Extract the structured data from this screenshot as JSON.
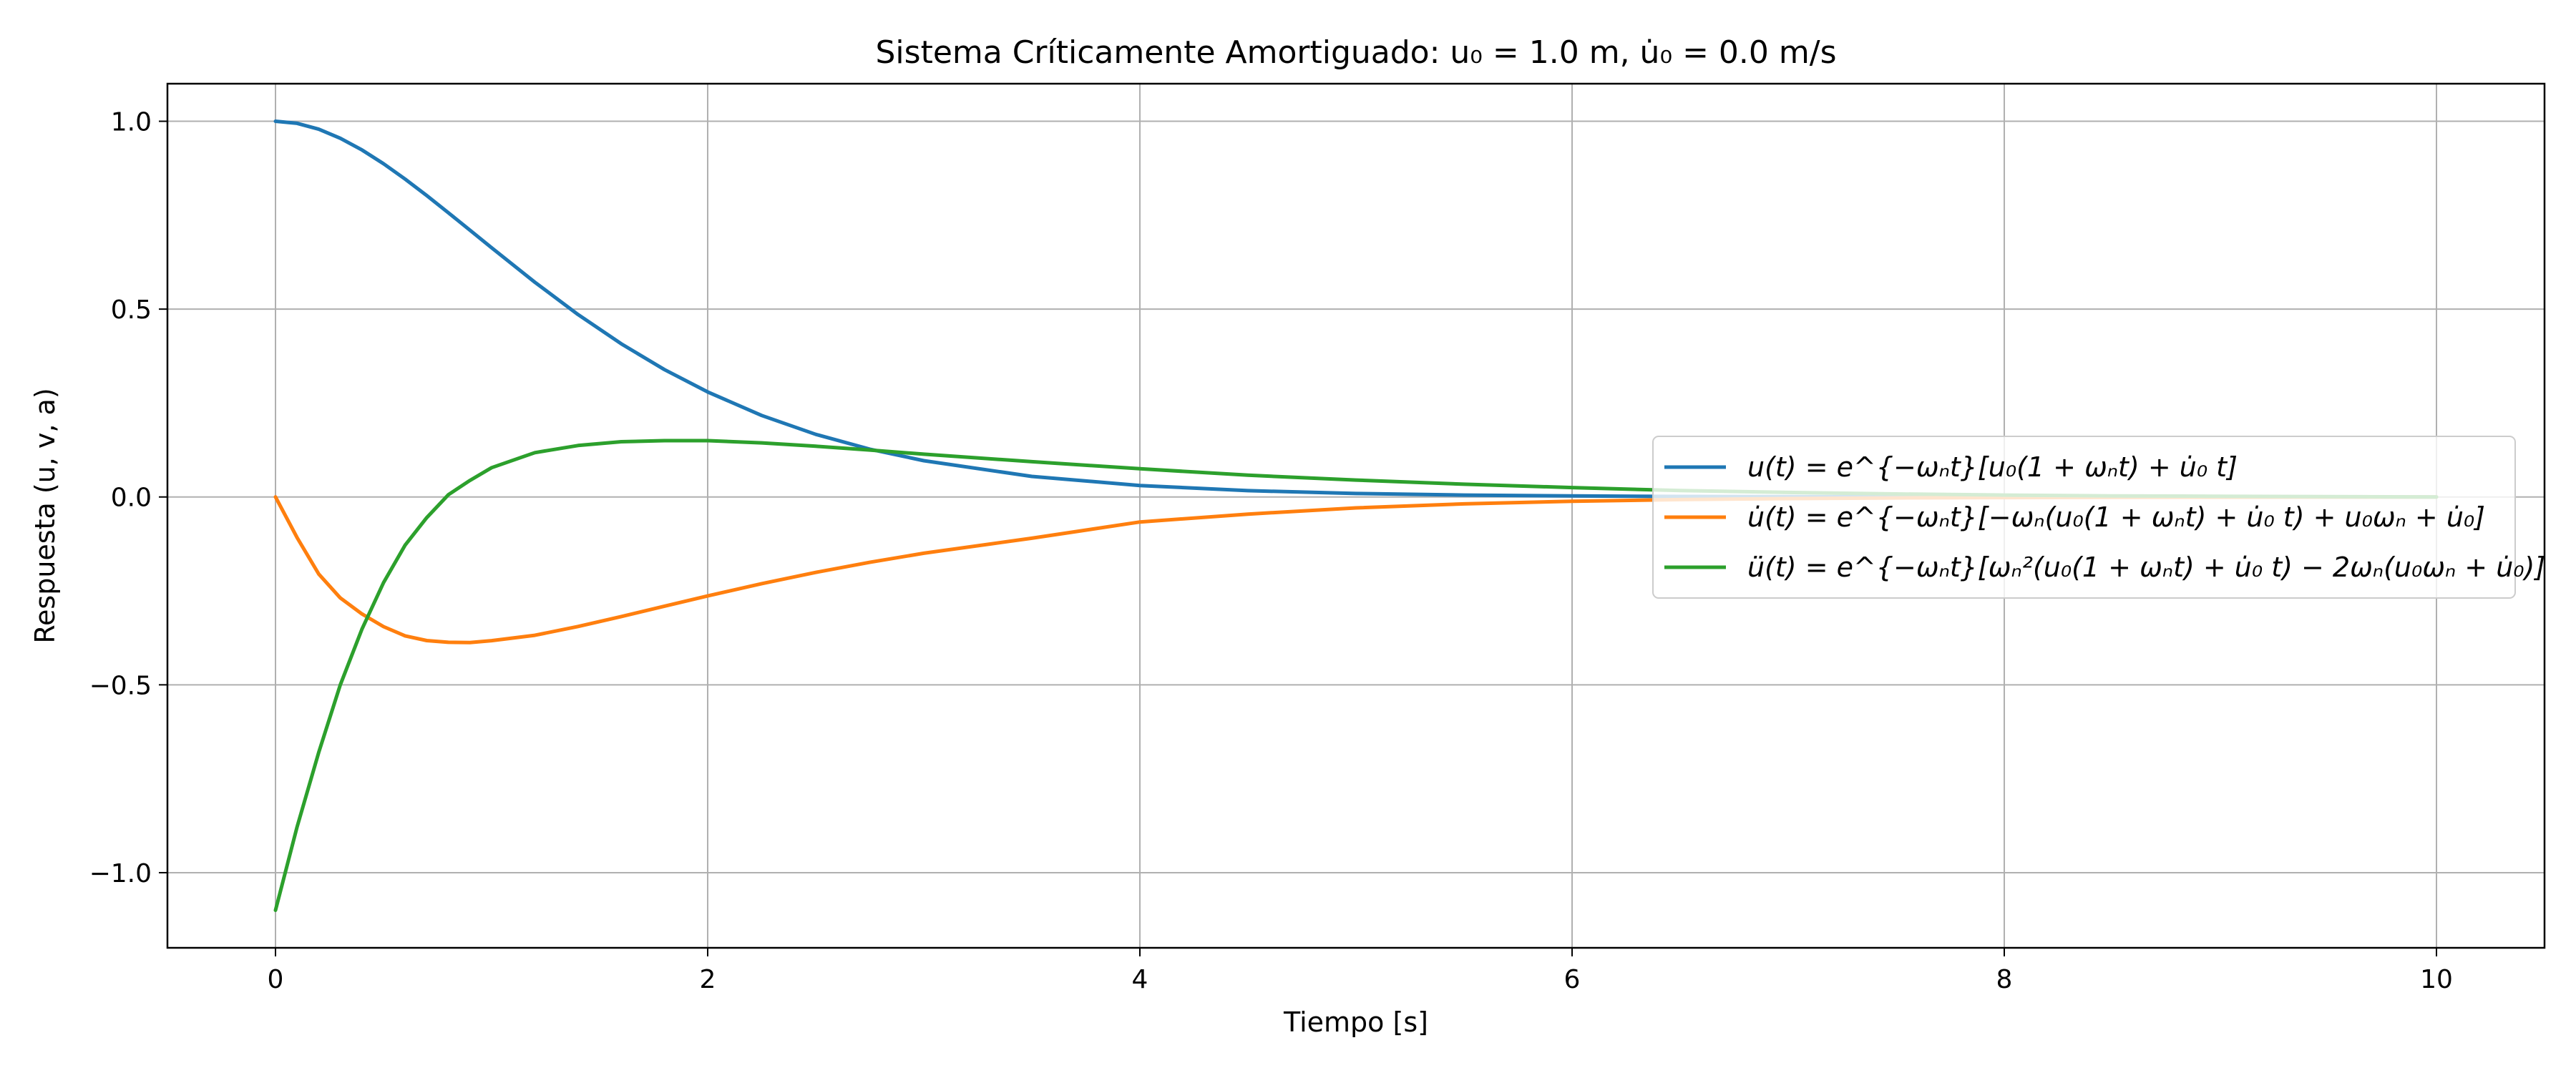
{
  "chart_data": {
    "type": "line",
    "title": "Sistema Críticamente Amortiguado: u₀ = 1.0 m, u̇₀ = 0.0 m/s",
    "xlabel": "Tiempo [s]",
    "ylabel": "Respuesta (u, v, a)",
    "xlim": [
      -0.5,
      10.5
    ],
    "ylim": [
      -1.2,
      1.1
    ],
    "xticks": [
      0,
      2,
      4,
      6,
      8,
      10
    ],
    "xtick_labels": [
      "0",
      "2",
      "4",
      "6",
      "8",
      "10"
    ],
    "yticks": [
      -1.0,
      -0.5,
      0.0,
      0.5,
      1.0
    ],
    "ytick_labels": [
      "−1.0",
      "−0.5",
      "0.0",
      "0.5",
      "1.0"
    ],
    "grid": true,
    "legend_position": "center-right",
    "x": [
      0,
      0.1,
      0.2,
      0.3,
      0.4,
      0.5,
      0.6,
      0.7,
      0.8,
      0.9,
      1.0,
      1.2,
      1.4,
      1.6,
      1.8,
      2.0,
      2.25,
      2.5,
      2.75,
      3.0,
      3.5,
      4.0,
      4.5,
      5.0,
      5.5,
      6.0,
      6.5,
      7.0,
      7.5,
      8.0,
      8.5,
      9.0,
      9.5,
      10.0
    ],
    "series": [
      {
        "name": "u(t) = e^{−ωₙt}[u₀(1 + ωₙt) + u̇₀ t]",
        "color": "#1f77b4",
        "values": [
          1.0,
          0.9945,
          0.9789,
          0.9548,
          0.9236,
          0.8869,
          0.8461,
          0.8023,
          0.7566,
          0.7101,
          0.6634,
          0.5716,
          0.4856,
          0.4077,
          0.3389,
          0.2796,
          0.2169,
          0.1666,
          0.1272,
          0.0966,
          0.0548,
          0.0306,
          0.0169,
          0.0093,
          0.005,
          0.0027,
          0.0015,
          0.0008,
          0.0004,
          0.0002,
          0.0001,
          0.0001,
          0.0,
          0.0
        ]
      },
      {
        "name": "u̇(t) = e^{−ωₙt}[−ωₙ(u₀(1 + ωₙt) + u̇₀ t) + u₀ωₙ + u̇₀]",
        "color": "#ff7f0e",
        "values": [
          0.0,
          -0.1082,
          -0.2049,
          -0.2688,
          -0.3113,
          -0.3451,
          -0.3697,
          -0.3822,
          -0.3868,
          -0.3873,
          -0.3825,
          -0.3681,
          -0.3447,
          -0.3183,
          -0.2906,
          -0.2634,
          -0.2307,
          -0.2007,
          -0.174,
          -0.1497,
          -0.1097,
          -0.0665,
          -0.0457,
          -0.029,
          -0.0183,
          -0.0113,
          -0.007,
          -0.0043,
          -0.0026,
          -0.0016,
          -0.001,
          -0.0006,
          -0.0004,
          -0.0002
        ]
      },
      {
        "name": "ü(t) = e^{−ωₙt}[ωₙ²(u₀(1 + ωₙt) + u̇₀ t) − 2ωₙ(u₀ωₙ + u̇₀)]",
        "color": "#2ca02c",
        "values": [
          -1.1,
          -0.878,
          -0.68,
          -0.5,
          -0.352,
          -0.228,
          -0.128,
          -0.055,
          0.006,
          0.044,
          0.078,
          0.118,
          0.137,
          0.147,
          0.15,
          0.15,
          0.144,
          0.135,
          0.125,
          0.114,
          0.094,
          0.075,
          0.058,
          0.045,
          0.034,
          0.025,
          0.017,
          0.012,
          0.008,
          0.005,
          0.003,
          0.002,
          0.001,
          0.0
        ]
      }
    ]
  }
}
